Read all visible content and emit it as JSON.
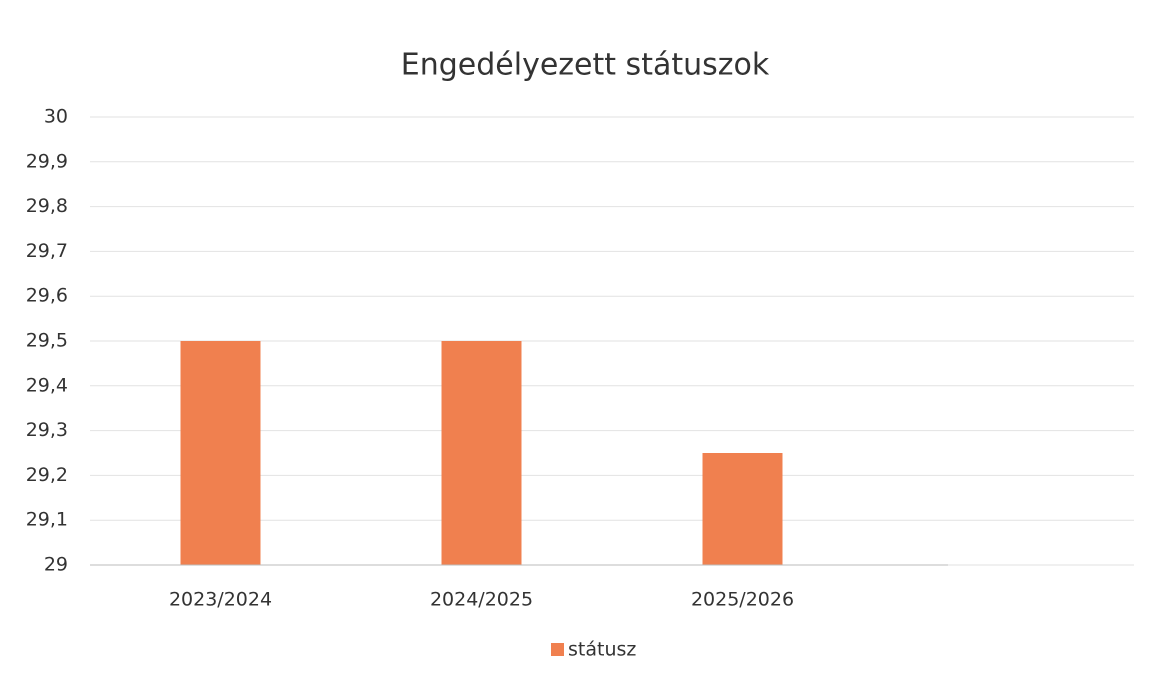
{
  "chart_data": {
    "type": "bar",
    "title": "Engedélyezett státuszok",
    "categories": [
      "2023/2024",
      "2024/2025",
      "2025/2026"
    ],
    "series": [
      {
        "name": "státusz",
        "color": "#f0804f",
        "values": [
          29.5,
          29.5,
          29.25
        ]
      }
    ],
    "ylim": [
      29,
      30
    ],
    "yticks": [
      29,
      {
        "value": 29.1,
        "label": "29,1"
      },
      {
        "value": 29.2,
        "label": "29,2"
      },
      {
        "value": 29.3,
        "label": "29,3"
      },
      {
        "value": 29.4,
        "label": "29,4"
      },
      {
        "value": 29.5,
        "label": "29,5"
      },
      {
        "value": 29.6,
        "label": "29,6"
      },
      {
        "value": 29.7,
        "label": "29,7"
      },
      {
        "value": 29.8,
        "label": "29,8"
      },
      {
        "value": 29.9,
        "label": "29,9"
      },
      30
    ],
    "grid": true,
    "legend": "bottom"
  }
}
